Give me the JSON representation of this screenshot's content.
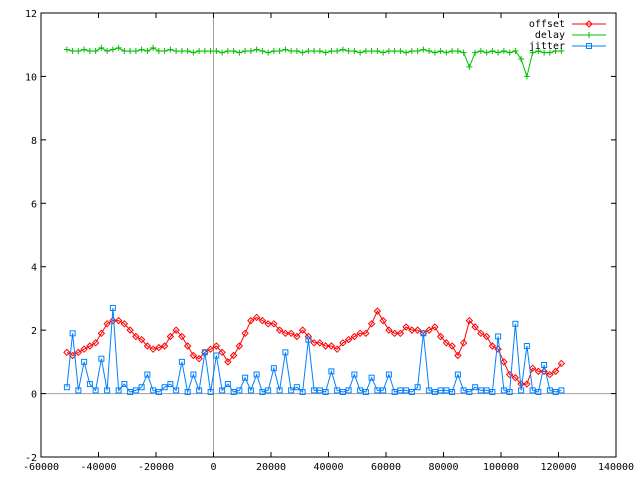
{
  "chart_data": {
    "type": "line",
    "title": "",
    "xlabel": "",
    "ylabel": "",
    "xlim": [
      -60000,
      140000
    ],
    "ylim": [
      -2,
      12
    ],
    "xticks": [
      -60000,
      -40000,
      -20000,
      0,
      20000,
      40000,
      60000,
      80000,
      100000,
      120000,
      140000
    ],
    "yticks": [
      -2,
      0,
      2,
      4,
      6,
      8,
      10,
      12
    ],
    "zero_axes": true,
    "grid": false,
    "legend_position": "top-right",
    "series": [
      {
        "name": "offset",
        "color": "#ff0000",
        "marker": "diamond",
        "x": [
          -51000,
          -49000,
          -47000,
          -45000,
          -43000,
          -41000,
          -39000,
          -37000,
          -35000,
          -33000,
          -31000,
          -29000,
          -27000,
          -25000,
          -23000,
          -21000,
          -19000,
          -17000,
          -15000,
          -13000,
          -11000,
          -9000,
          -7000,
          -5000,
          -3000,
          -1000,
          1000,
          3000,
          5000,
          7000,
          9000,
          11000,
          13000,
          15000,
          17000,
          19000,
          21000,
          23000,
          25000,
          27000,
          29000,
          31000,
          33000,
          35000,
          37000,
          39000,
          41000,
          43000,
          45000,
          47000,
          49000,
          51000,
          53000,
          55000,
          57000,
          59000,
          61000,
          63000,
          65000,
          67000,
          69000,
          71000,
          73000,
          75000,
          77000,
          79000,
          81000,
          83000,
          85000,
          87000,
          89000,
          91000,
          93000,
          95000,
          97000,
          99000,
          101000,
          103000,
          105000,
          107000,
          109000,
          111000,
          113000,
          115000,
          117000,
          119000,
          121000
        ],
        "values": [
          1.3,
          1.2,
          1.3,
          1.4,
          1.5,
          1.6,
          1.9,
          2.2,
          2.3,
          2.3,
          2.2,
          2.0,
          1.8,
          1.7,
          1.5,
          1.4,
          1.45,
          1.5,
          1.8,
          2.0,
          1.8,
          1.5,
          1.2,
          1.1,
          1.3,
          1.4,
          1.5,
          1.3,
          1.0,
          1.2,
          1.5,
          1.9,
          2.3,
          2.4,
          2.3,
          2.2,
          2.2,
          2.0,
          1.9,
          1.9,
          1.8,
          2.0,
          1.8,
          1.6,
          1.6,
          1.5,
          1.5,
          1.4,
          1.6,
          1.7,
          1.8,
          1.9,
          1.9,
          2.2,
          2.6,
          2.3,
          2.0,
          1.9,
          1.9,
          2.1,
          2.0,
          2.0,
          1.9,
          2.0,
          2.1,
          1.8,
          1.6,
          1.5,
          1.2,
          1.6,
          2.3,
          2.1,
          1.9,
          1.8,
          1.5,
          1.4,
          1.0,
          0.6,
          0.5,
          0.3,
          0.3,
          0.8,
          0.7,
          0.7,
          0.6,
          0.7,
          0.95
        ]
      },
      {
        "name": "delay",
        "color": "#00c000",
        "marker": "plus",
        "x": [
          -51000,
          -49000,
          -47000,
          -45000,
          -43000,
          -41000,
          -39000,
          -37000,
          -35000,
          -33000,
          -31000,
          -29000,
          -27000,
          -25000,
          -23000,
          -21000,
          -19000,
          -17000,
          -15000,
          -13000,
          -11000,
          -9000,
          -7000,
          -5000,
          -3000,
          -1000,
          1000,
          3000,
          5000,
          7000,
          9000,
          11000,
          13000,
          15000,
          17000,
          19000,
          21000,
          23000,
          25000,
          27000,
          29000,
          31000,
          33000,
          35000,
          37000,
          39000,
          41000,
          43000,
          45000,
          47000,
          49000,
          51000,
          53000,
          55000,
          57000,
          59000,
          61000,
          63000,
          65000,
          67000,
          69000,
          71000,
          73000,
          75000,
          77000,
          79000,
          81000,
          83000,
          85000,
          87000,
          89000,
          91000,
          93000,
          95000,
          97000,
          99000,
          101000,
          103000,
          105000,
          107000,
          109000,
          111000,
          113000,
          115000,
          117000,
          119000,
          121000
        ],
        "values": [
          10.85,
          10.8,
          10.8,
          10.85,
          10.8,
          10.8,
          10.9,
          10.8,
          10.85,
          10.9,
          10.8,
          10.8,
          10.8,
          10.85,
          10.8,
          10.9,
          10.8,
          10.8,
          10.85,
          10.8,
          10.8,
          10.8,
          10.75,
          10.8,
          10.8,
          10.8,
          10.8,
          10.75,
          10.8,
          10.8,
          10.75,
          10.8,
          10.8,
          10.85,
          10.8,
          10.75,
          10.8,
          10.8,
          10.85,
          10.8,
          10.8,
          10.75,
          10.8,
          10.8,
          10.8,
          10.75,
          10.8,
          10.8,
          10.85,
          10.8,
          10.8,
          10.75,
          10.8,
          10.8,
          10.8,
          10.75,
          10.8,
          10.8,
          10.8,
          10.75,
          10.8,
          10.8,
          10.85,
          10.8,
          10.75,
          10.8,
          10.75,
          10.8,
          10.8,
          10.75,
          10.3,
          10.75,
          10.8,
          10.75,
          10.8,
          10.75,
          10.8,
          10.75,
          10.8,
          10.55,
          10.0,
          10.75,
          10.8,
          10.75,
          10.75,
          10.8,
          10.8
        ]
      },
      {
        "name": "jitter",
        "color": "#0080ff",
        "marker": "square",
        "x": [
          -51000,
          -49000,
          -47000,
          -45000,
          -43000,
          -41000,
          -39000,
          -37000,
          -35000,
          -33000,
          -31000,
          -29000,
          -27000,
          -25000,
          -23000,
          -21000,
          -19000,
          -17000,
          -15000,
          -13000,
          -11000,
          -9000,
          -7000,
          -5000,
          -3000,
          -1000,
          1000,
          3000,
          5000,
          7000,
          9000,
          11000,
          13000,
          15000,
          17000,
          19000,
          21000,
          23000,
          25000,
          27000,
          29000,
          31000,
          33000,
          35000,
          37000,
          39000,
          41000,
          43000,
          45000,
          47000,
          49000,
          51000,
          53000,
          55000,
          57000,
          59000,
          61000,
          63000,
          65000,
          67000,
          69000,
          71000,
          73000,
          75000,
          77000,
          79000,
          81000,
          83000,
          85000,
          87000,
          89000,
          91000,
          93000,
          95000,
          97000,
          99000,
          101000,
          103000,
          105000,
          107000,
          109000,
          111000,
          113000,
          115000,
          117000,
          119000,
          121000
        ],
        "values": [
          0.2,
          1.9,
          0.1,
          1.0,
          0.3,
          0.1,
          1.1,
          0.1,
          2.7,
          0.1,
          0.3,
          0.05,
          0.1,
          0.2,
          0.6,
          0.1,
          0.05,
          0.2,
          0.3,
          0.1,
          1.0,
          0.05,
          0.6,
          0.1,
          1.3,
          0.05,
          1.2,
          0.1,
          0.3,
          0.05,
          0.1,
          0.5,
          0.1,
          0.6,
          0.05,
          0.1,
          0.8,
          0.1,
          1.3,
          0.1,
          0.2,
          0.05,
          1.7,
          0.1,
          0.1,
          0.05,
          0.7,
          0.1,
          0.05,
          0.1,
          0.6,
          0.1,
          0.05,
          0.5,
          0.1,
          0.1,
          0.6,
          0.05,
          0.1,
          0.1,
          0.05,
          0.2,
          1.9,
          0.1,
          0.05,
          0.1,
          0.1,
          0.05,
          0.6,
          0.1,
          0.05,
          0.2,
          0.1,
          0.1,
          0.05,
          1.8,
          0.1,
          0.05,
          2.2,
          0.1,
          1.5,
          0.1,
          0.05,
          0.9,
          0.1,
          0.05,
          0.1
        ]
      }
    ]
  }
}
